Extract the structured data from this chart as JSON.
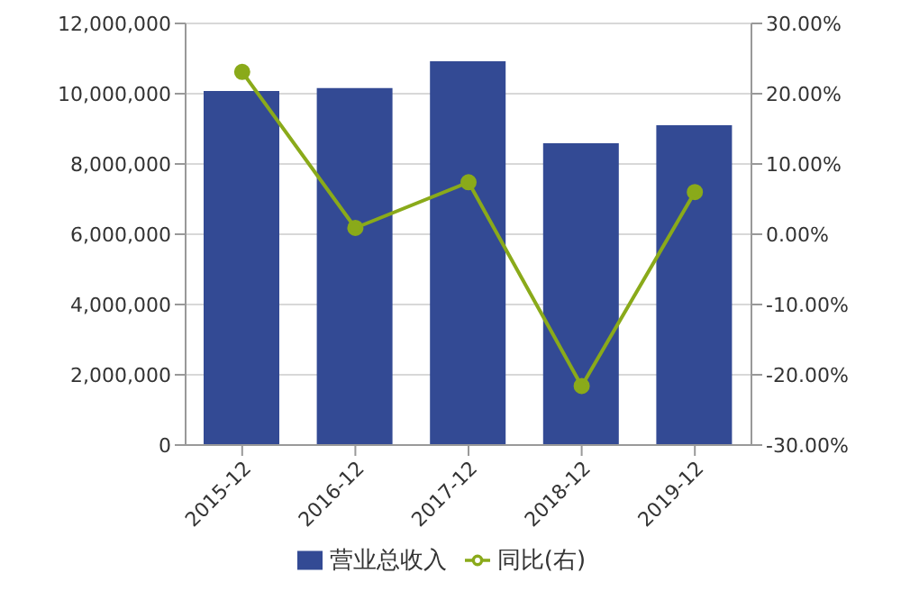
{
  "chart_data": {
    "type": "bar",
    "categories": [
      "2015-12",
      "2016-12",
      "2017-12",
      "2018-12",
      "2019-12"
    ],
    "series": [
      {
        "name": "营业总收入",
        "color": "#334a94",
        "values": [
          10080000,
          10160000,
          10920000,
          8590000,
          9100000
        ]
      },
      {
        "name": "同比(右)",
        "type": "line",
        "axis": "y2",
        "color": "#8aaa1a",
        "values": [
          23.1,
          0.9,
          7.4,
          -21.6,
          6.0
        ]
      }
    ],
    "ylim": [
      0,
      12000000
    ],
    "yticks": [
      {
        "value": 0,
        "label": "0"
      },
      {
        "value": 2000000,
        "label": "2,000,000"
      },
      {
        "value": 4000000,
        "label": "4,000,000"
      },
      {
        "value": 6000000,
        "label": "6,000,000"
      },
      {
        "value": 8000000,
        "label": "8,000,000"
      },
      {
        "value": 10000000,
        "label": "10,000,000"
      },
      {
        "value": 12000000,
        "label": "12,000,000"
      }
    ],
    "y2lim": [
      -30,
      30
    ],
    "y2ticks": [
      {
        "value": -30,
        "label": "-30.00%"
      },
      {
        "value": -20,
        "label": "-20.00%"
      },
      {
        "value": -10,
        "label": "-10.00%"
      },
      {
        "value": 0,
        "label": "0.00%"
      },
      {
        "value": 10,
        "label": "10.00%"
      },
      {
        "value": 20,
        "label": "20.00%"
      },
      {
        "value": 30,
        "label": "30.00%"
      }
    ],
    "grid": "y",
    "legend": "bottom",
    "marker": "circle",
    "line_style": "solid"
  }
}
